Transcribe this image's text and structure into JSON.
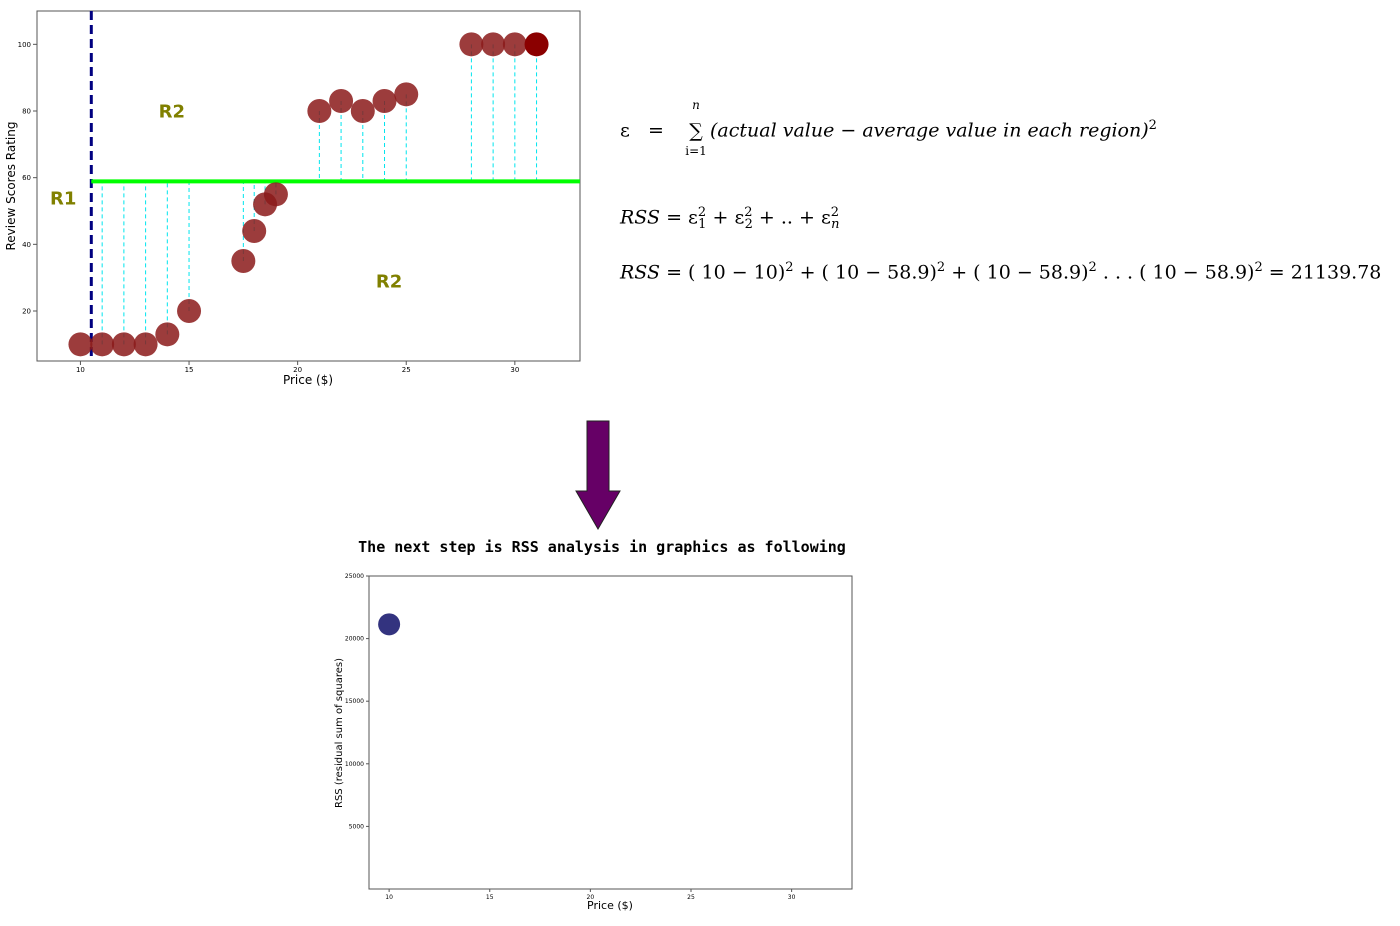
{
  "colors": {
    "point": "#8b1a1a",
    "point_last": "#8b0000",
    "mean_line": "#00ff00",
    "split_line": "#000080",
    "residual": "#00e5ee",
    "region_label": "#808000",
    "rss_point": "#282878",
    "arrow": "#660066"
  },
  "caption": "The next step is RSS analysis in graphics as following",
  "formulas": {
    "eps_lhs": "ε",
    "eq": "=",
    "sum_symbol": "∑",
    "sum_top": "n",
    "sum_bottom": "i=1",
    "eps_body": "(actual value − average value in each region)",
    "sq": "2",
    "rss_label": "RSS",
    "rss_def": "= ε",
    "rss_def_rest_1": " + ε",
    "rss_def_rest_2": " + .. + ε",
    "sub_1": "1",
    "sub_2": "2",
    "sub_n": "n",
    "rss_calc_1": "= ( 10 − 10)",
    "rss_calc_2": " + ( 10 − 58.9)",
    "rss_calc_3": " + ( 10 − 58.9)",
    "rss_calc_4": " . . . ( 10 − 58.9)",
    "rss_result": " = 21139.78"
  },
  "chart_data": [
    {
      "type": "scatter",
      "title": "",
      "xlabel": "Price ($)",
      "ylabel": "Review Scores Rating",
      "xlim": [
        8,
        33
      ],
      "ylim": [
        5,
        110
      ],
      "xticks": [
        10,
        15,
        20,
        25,
        30
      ],
      "yticks": [
        20,
        40,
        60,
        80,
        100
      ],
      "x": [
        10,
        11,
        12,
        13,
        14,
        15,
        17.5,
        18,
        18.5,
        19,
        21,
        22,
        23,
        24,
        25,
        28,
        29,
        30,
        31
      ],
      "y": [
        10,
        10,
        10,
        10,
        13,
        20,
        35,
        44,
        52,
        55,
        80,
        83,
        80,
        83,
        85,
        100,
        100,
        100,
        100
      ],
      "split_x": 10.5,
      "region_mean": 58.9,
      "region_labels": [
        {
          "text": "R1",
          "x": 8.6,
          "y": 52
        },
        {
          "text": "R2",
          "x": 13.6,
          "y": 78
        },
        {
          "text": "R2",
          "x": 23.6,
          "y": 27
        }
      ],
      "grid": false
    },
    {
      "type": "scatter",
      "title": "",
      "xlabel": "Price ($)",
      "ylabel": "RSS (residual sum of squares)",
      "xlim": [
        9,
        33
      ],
      "ylim": [
        0,
        25000
      ],
      "xticks": [
        10,
        15,
        20,
        25,
        30
      ],
      "yticks": [
        5000,
        10000,
        15000,
        20000,
        25000
      ],
      "x": [
        10
      ],
      "y": [
        21139.78
      ],
      "grid": false
    }
  ]
}
